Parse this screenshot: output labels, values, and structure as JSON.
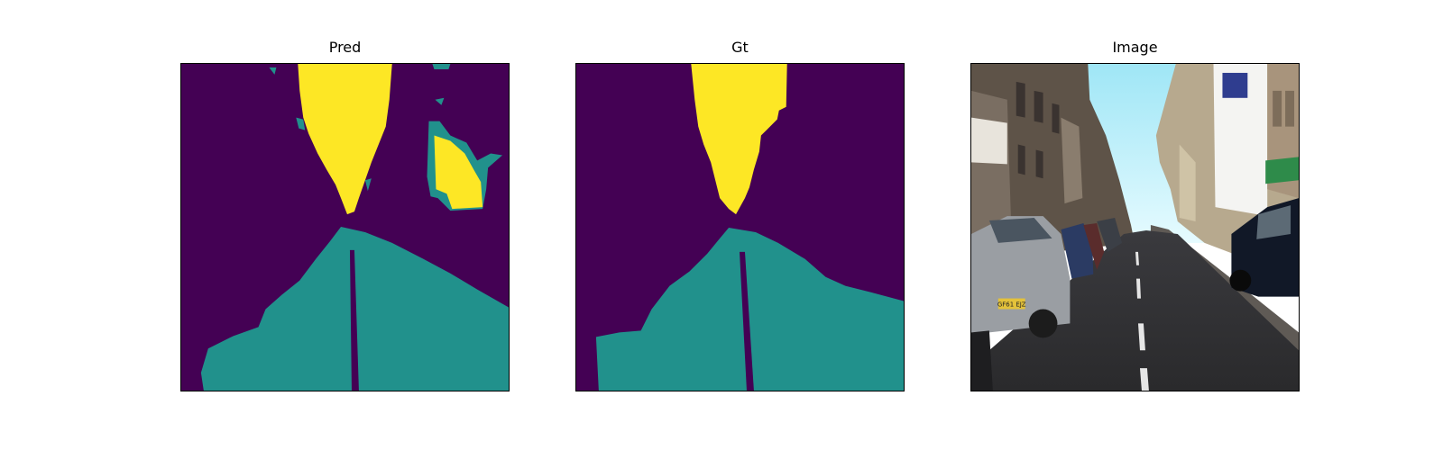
{
  "figure": {
    "panels": [
      {
        "title": "Pred"
      },
      {
        "title": "Gt"
      },
      {
        "title": "Image"
      }
    ]
  },
  "colormap": {
    "background": "#440154",
    "road": "#21918c",
    "sky": "#fde725"
  },
  "icons": {
    "plate_text": "GF61 EJZ"
  }
}
